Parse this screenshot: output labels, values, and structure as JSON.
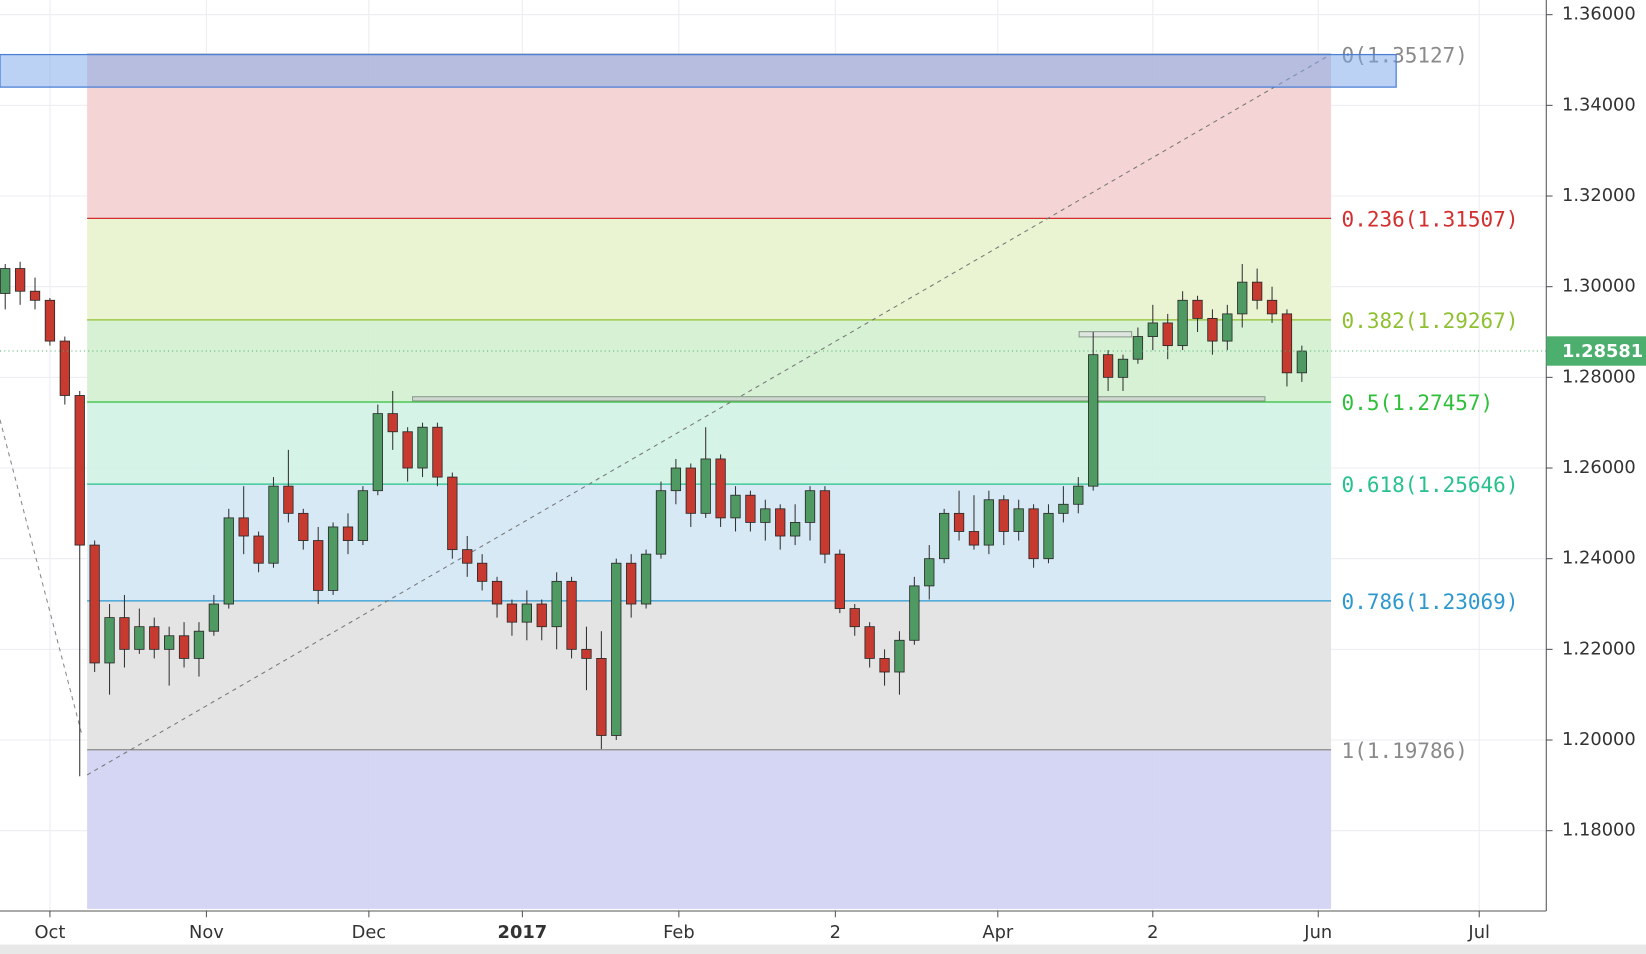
{
  "chart_data": {
    "type": "candlestick",
    "series": [
      {
        "up_color": "#4f9a62",
        "down_color": "#c63a30",
        "open": [
          1.2985,
          1.304,
          1.299,
          1.297,
          1.288,
          1.276,
          1.243,
          1.217,
          1.227,
          1.22,
          1.225,
          1.22,
          1.223,
          1.218,
          1.224,
          1.23,
          1.249,
          1.245,
          1.239,
          1.256,
          1.25,
          1.244,
          1.233,
          1.247,
          1.244,
          1.255,
          1.272,
          1.268,
          1.26,
          1.269,
          1.258,
          1.242,
          1.239,
          1.235,
          1.23,
          1.226,
          1.23,
          1.225,
          1.235,
          1.22,
          1.218,
          1.201,
          1.239,
          1.23,
          1.241,
          1.255,
          1.26,
          1.25,
          1.262,
          1.249,
          1.254,
          1.248,
          1.251,
          1.245,
          1.248,
          1.255,
          1.241,
          1.229,
          1.225,
          1.218,
          1.215,
          1.222,
          1.234,
          1.24,
          1.25,
          1.246,
          1.243,
          1.253,
          1.246,
          1.251,
          1.24,
          1.25,
          1.252,
          1.256,
          1.285,
          1.28,
          1.284,
          1.289,
          1.292,
          1.287,
          1.297,
          1.293,
          1.288,
          1.294,
          1.301,
          1.297,
          1.294,
          1.281
        ],
        "high": [
          1.305,
          1.3055,
          1.302,
          1.2975,
          1.289,
          1.277,
          1.244,
          1.23,
          1.232,
          1.229,
          1.227,
          1.225,
          1.226,
          1.226,
          1.232,
          1.251,
          1.256,
          1.246,
          1.258,
          1.264,
          1.251,
          1.247,
          1.248,
          1.25,
          1.256,
          1.274,
          1.277,
          1.269,
          1.27,
          1.27,
          1.259,
          1.245,
          1.241,
          1.236,
          1.231,
          1.233,
          1.231,
          1.237,
          1.236,
          1.225,
          1.224,
          1.24,
          1.241,
          1.242,
          1.257,
          1.262,
          1.261,
          1.269,
          1.263,
          1.256,
          1.255,
          1.253,
          1.252,
          1.252,
          1.256,
          1.256,
          1.242,
          1.23,
          1.226,
          1.22,
          1.224,
          1.236,
          1.243,
          1.251,
          1.255,
          1.254,
          1.255,
          1.254,
          1.253,
          1.252,
          1.252,
          1.256,
          1.258,
          1.29,
          1.286,
          1.285,
          1.291,
          1.296,
          1.294,
          1.299,
          1.298,
          1.295,
          1.296,
          1.305,
          1.304,
          1.3,
          1.295,
          1.287
        ],
        "low": [
          1.295,
          1.296,
          1.295,
          1.287,
          1.274,
          1.192,
          1.215,
          1.21,
          1.216,
          1.219,
          1.218,
          1.212,
          1.216,
          1.214,
          1.223,
          1.229,
          1.241,
          1.237,
          1.238,
          1.248,
          1.242,
          1.23,
          1.232,
          1.241,
          1.243,
          1.254,
          1.264,
          1.257,
          1.258,
          1.256,
          1.24,
          1.236,
          1.233,
          1.227,
          1.223,
          1.222,
          1.222,
          1.22,
          1.218,
          1.211,
          1.198,
          1.2,
          1.227,
          1.229,
          1.24,
          1.252,
          1.247,
          1.249,
          1.247,
          1.246,
          1.246,
          1.244,
          1.242,
          1.243,
          1.244,
          1.239,
          1.228,
          1.223,
          1.216,
          1.212,
          1.21,
          1.221,
          1.231,
          1.239,
          1.244,
          1.242,
          1.241,
          1.243,
          1.244,
          1.238,
          1.239,
          1.248,
          1.25,
          1.255,
          1.277,
          1.277,
          1.283,
          1.286,
          1.284,
          1.286,
          1.29,
          1.285,
          1.286,
          1.291,
          1.295,
          1.292,
          1.278,
          1.279
        ],
        "close": [
          1.304,
          1.299,
          1.297,
          1.288,
          1.276,
          1.243,
          1.217,
          1.227,
          1.22,
          1.225,
          1.22,
          1.223,
          1.218,
          1.224,
          1.23,
          1.249,
          1.245,
          1.239,
          1.256,
          1.25,
          1.244,
          1.233,
          1.247,
          1.244,
          1.255,
          1.272,
          1.268,
          1.26,
          1.269,
          1.258,
          1.242,
          1.239,
          1.235,
          1.23,
          1.226,
          1.23,
          1.225,
          1.235,
          1.22,
          1.218,
          1.201,
          1.239,
          1.23,
          1.241,
          1.255,
          1.26,
          1.25,
          1.262,
          1.249,
          1.254,
          1.248,
          1.251,
          1.245,
          1.248,
          1.255,
          1.241,
          1.229,
          1.225,
          1.218,
          1.215,
          1.222,
          1.234,
          1.24,
          1.25,
          1.246,
          1.243,
          1.253,
          1.246,
          1.251,
          1.24,
          1.25,
          1.252,
          1.256,
          1.285,
          1.28,
          1.284,
          1.289,
          1.292,
          1.287,
          1.297,
          1.293,
          1.288,
          1.294,
          1.301,
          1.297,
          1.294,
          1.281,
          1.2858
        ]
      }
    ],
    "xlim": [
      -0.35,
      103.4
    ],
    "xticks": [
      {
        "value": 3,
        "label": "Oct"
      },
      {
        "value": 13.5,
        "label": "Nov"
      },
      {
        "value": 24.4,
        "label": "Dec"
      },
      {
        "value": 34.7,
        "label": "2017"
      },
      {
        "value": 45.2,
        "label": "Feb"
      },
      {
        "value": 55.7,
        "label": "2"
      },
      {
        "value": 66.6,
        "label": "Apr"
      },
      {
        "value": 77,
        "label": "2"
      },
      {
        "value": 88.1,
        "label": "Jun"
      },
      {
        "value": 98.9,
        "label": "Jul"
      }
    ],
    "ylim": [
      1.16229,
      1.36324
    ],
    "yticks": [
      {
        "value": 1.18,
        "label": "1.18000"
      },
      {
        "value": 1.2,
        "label": "1.20000"
      },
      {
        "value": 1.22,
        "label": "1.22000"
      },
      {
        "value": 1.24,
        "label": "1.24000"
      },
      {
        "value": 1.26,
        "label": "1.26000"
      },
      {
        "value": 1.28,
        "label": "1.28000"
      },
      {
        "value": 1.3,
        "label": "1.30000"
      },
      {
        "value": 1.32,
        "label": "1.32000"
      },
      {
        "value": 1.34,
        "label": "1.34000"
      },
      {
        "value": 1.36,
        "label": "1.36000"
      }
    ],
    "grid": true,
    "last_price": 1.28581,
    "last_price_color": "#4caf6e",
    "fib_levels": [
      {
        "value": 1.35127,
        "label": "0(1.35127)",
        "color": "#8a8a8a",
        "fill": "#f3d2d2"
      },
      {
        "value": 1.31507,
        "label": "0.236(1.31507)",
        "color": "#d32f2f",
        "fill": "#eaf3d0"
      },
      {
        "value": 1.29267,
        "label": "0.382(1.29267)",
        "color": "#8fc031",
        "fill": "#d5f0d2"
      },
      {
        "value": 1.27457,
        "label": "0.5(1.27457)",
        "color": "#2fbf3a",
        "fill": "#d3f2e6"
      },
      {
        "value": 1.25646,
        "label": "0.618(1.25646)",
        "color": "#26c28a",
        "fill": "#d6e8f5"
      },
      {
        "value": 1.23069,
        "label": "0.786(1.23069)",
        "color": "#2d98d0",
        "fill": "#e3e3e3"
      },
      {
        "value": 1.19786,
        "label": "1(1.19786)",
        "color": "#8a8a8a",
        "fill": "#d3d3f3"
      }
    ]
  }
}
